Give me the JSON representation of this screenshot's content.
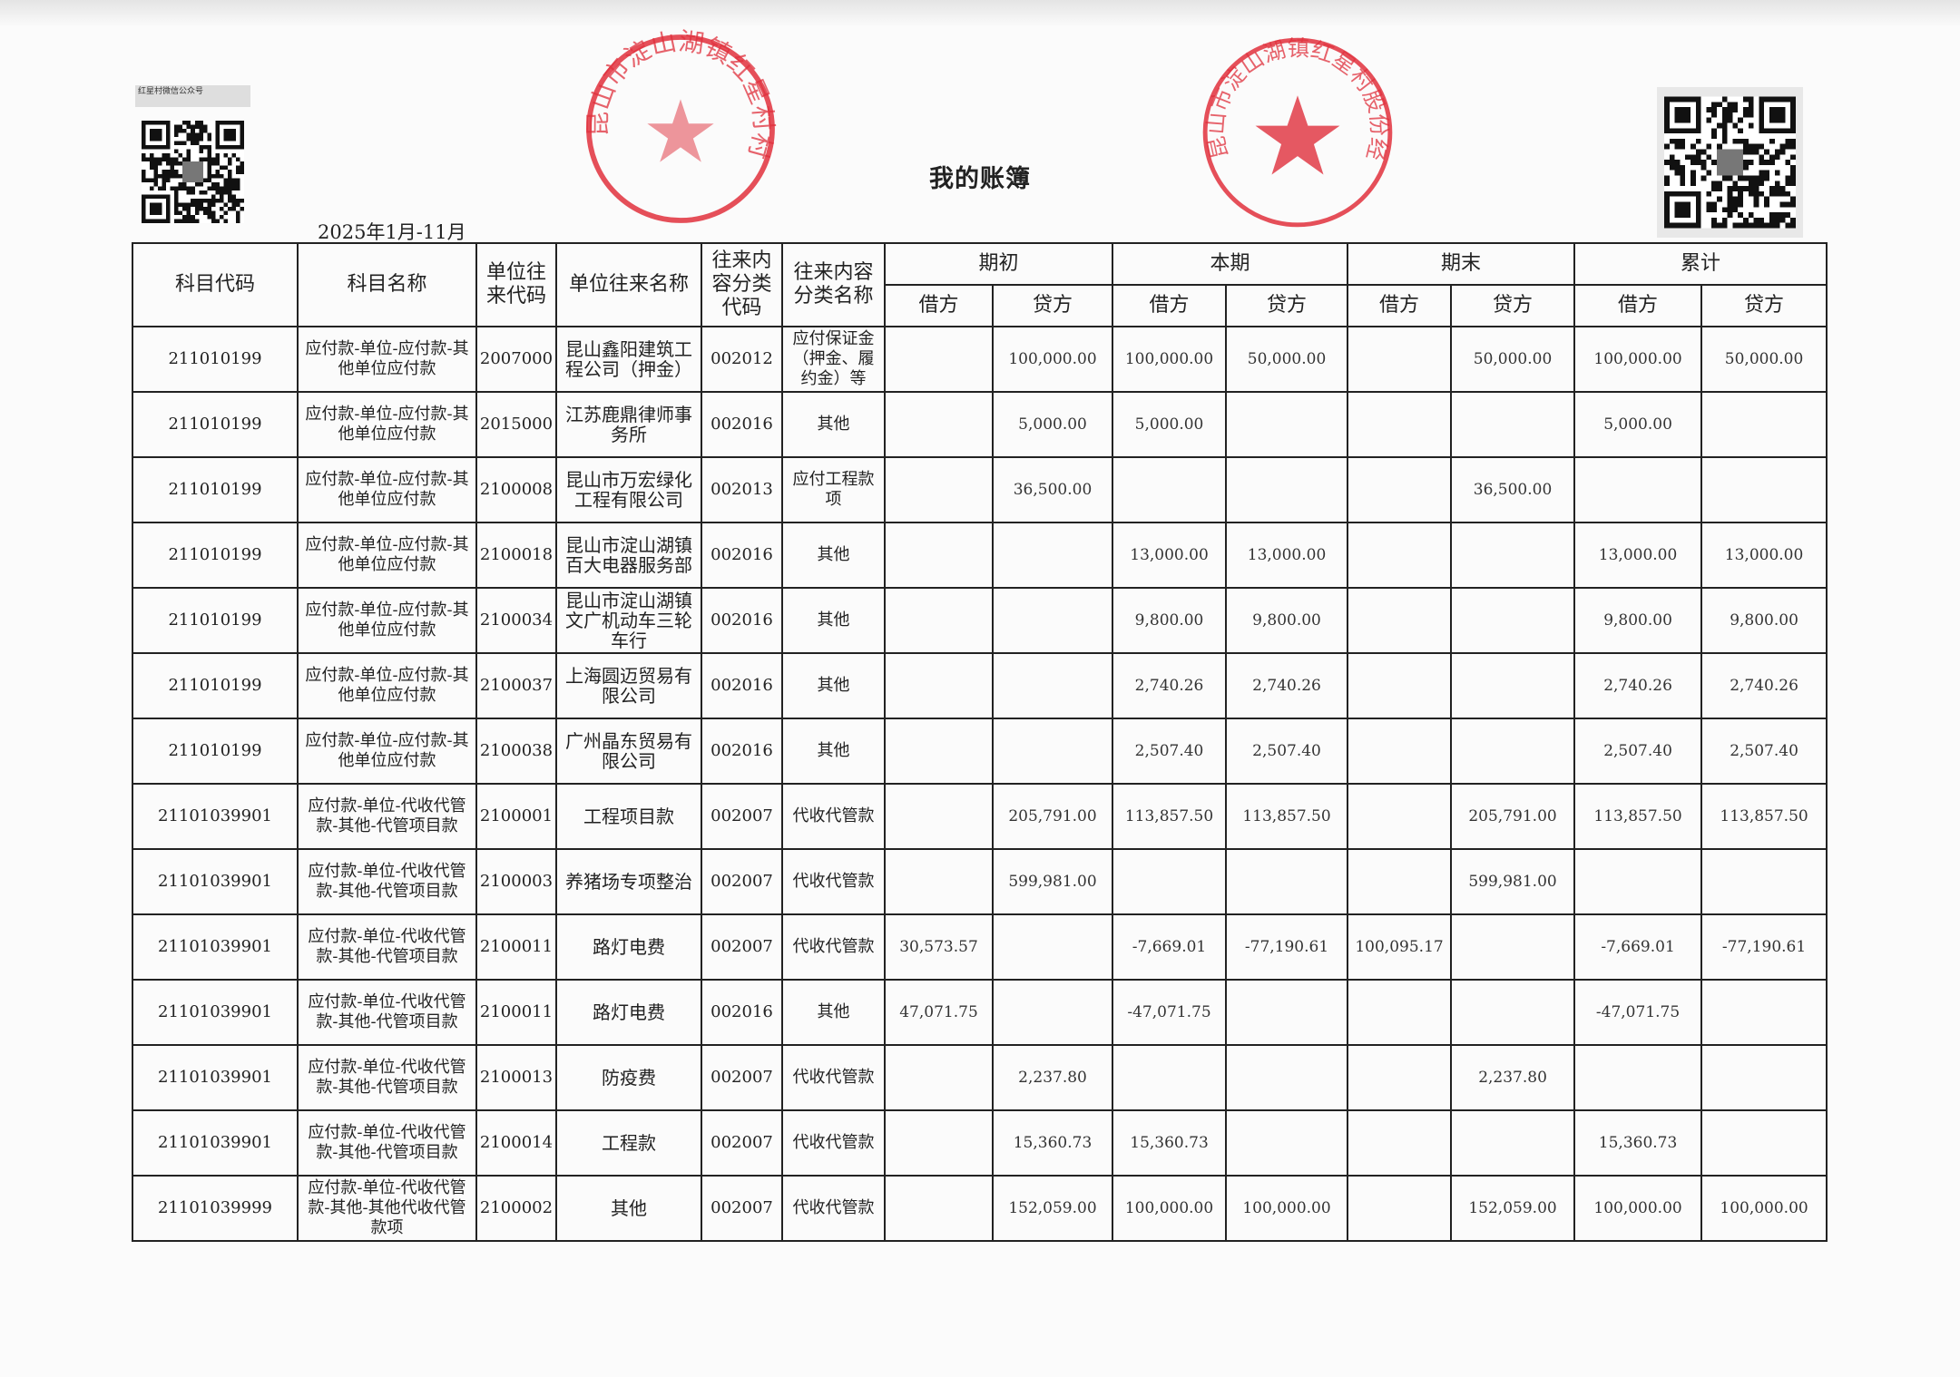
{
  "header": {
    "wechat_label": "红星村微信公众号",
    "title": "我的账簿",
    "period": "2025年1月-11月"
  },
  "table": {
    "columns": {
      "subject_code": "科目代码",
      "subject_name": "科目名称",
      "unit_code": "单位往来代码",
      "unit_name": "单位往来名称",
      "category_code": "往来内容分类代码",
      "category_name": "往来内容分类名称",
      "opening": "期初",
      "current": "本期",
      "closing": "期末",
      "cumulative": "累计",
      "debit": "借方",
      "credit": "贷方"
    },
    "rows": [
      {
        "subject_code": "211010199",
        "subject_name": "应付款-单位-应付款-其他单位应付款",
        "unit_code": "2007000",
        "unit_name": "昆山鑫阳建筑工程公司（押金）",
        "category_code": "002012",
        "category_name": "应付保证金（押金、履约金）等",
        "opening_debit": "",
        "opening_credit": "100,000.00",
        "current_debit": "100,000.00",
        "current_credit": "50,000.00",
        "closing_debit": "",
        "closing_credit": "50,000.00",
        "cum_debit": "100,000.00",
        "cum_credit": "50,000.00"
      },
      {
        "subject_code": "211010199",
        "subject_name": "应付款-单位-应付款-其他单位应付款",
        "unit_code": "2015000",
        "unit_name": "江苏鹿鼎律师事务所",
        "category_code": "002016",
        "category_name": "其他",
        "opening_debit": "",
        "opening_credit": "5,000.00",
        "current_debit": "5,000.00",
        "current_credit": "",
        "closing_debit": "",
        "closing_credit": "",
        "cum_debit": "5,000.00",
        "cum_credit": ""
      },
      {
        "subject_code": "211010199",
        "subject_name": "应付款-单位-应付款-其他单位应付款",
        "unit_code": "2100008",
        "unit_name": "昆山市万宏绿化工程有限公司",
        "category_code": "002013",
        "category_name": "应付工程款项",
        "opening_debit": "",
        "opening_credit": "36,500.00",
        "current_debit": "",
        "current_credit": "",
        "closing_debit": "",
        "closing_credit": "36,500.00",
        "cum_debit": "",
        "cum_credit": ""
      },
      {
        "subject_code": "211010199",
        "subject_name": "应付款-单位-应付款-其他单位应付款",
        "unit_code": "2100018",
        "unit_name": "昆山市淀山湖镇百大电器服务部",
        "category_code": "002016",
        "category_name": "其他",
        "opening_debit": "",
        "opening_credit": "",
        "current_debit": "13,000.00",
        "current_credit": "13,000.00",
        "closing_debit": "",
        "closing_credit": "",
        "cum_debit": "13,000.00",
        "cum_credit": "13,000.00"
      },
      {
        "subject_code": "211010199",
        "subject_name": "应付款-单位-应付款-其他单位应付款",
        "unit_code": "2100034",
        "unit_name": "昆山市淀山湖镇文广机动车三轮车行",
        "category_code": "002016",
        "category_name": "其他",
        "opening_debit": "",
        "opening_credit": "",
        "current_debit": "9,800.00",
        "current_credit": "9,800.00",
        "closing_debit": "",
        "closing_credit": "",
        "cum_debit": "9,800.00",
        "cum_credit": "9,800.00"
      },
      {
        "subject_code": "211010199",
        "subject_name": "应付款-单位-应付款-其他单位应付款",
        "unit_code": "2100037",
        "unit_name": "上海圆迈贸易有限公司",
        "category_code": "002016",
        "category_name": "其他",
        "opening_debit": "",
        "opening_credit": "",
        "current_debit": "2,740.26",
        "current_credit": "2,740.26",
        "closing_debit": "",
        "closing_credit": "",
        "cum_debit": "2,740.26",
        "cum_credit": "2,740.26"
      },
      {
        "subject_code": "211010199",
        "subject_name": "应付款-单位-应付款-其他单位应付款",
        "unit_code": "2100038",
        "unit_name": "广州晶东贸易有限公司",
        "category_code": "002016",
        "category_name": "其他",
        "opening_debit": "",
        "opening_credit": "",
        "current_debit": "2,507.40",
        "current_credit": "2,507.40",
        "closing_debit": "",
        "closing_credit": "",
        "cum_debit": "2,507.40",
        "cum_credit": "2,507.40"
      },
      {
        "subject_code": "21101039901",
        "subject_name": "应付款-单位-代收代管款-其他-代管项目款",
        "unit_code": "2100001",
        "unit_name": "工程项目款",
        "category_code": "002007",
        "category_name": "代收代管款",
        "opening_debit": "",
        "opening_credit": "205,791.00",
        "current_debit": "113,857.50",
        "current_credit": "113,857.50",
        "closing_debit": "",
        "closing_credit": "205,791.00",
        "cum_debit": "113,857.50",
        "cum_credit": "113,857.50"
      },
      {
        "subject_code": "21101039901",
        "subject_name": "应付款-单位-代收代管款-其他-代管项目款",
        "unit_code": "2100003",
        "unit_name": "养猪场专项整治",
        "category_code": "002007",
        "category_name": "代收代管款",
        "opening_debit": "",
        "opening_credit": "599,981.00",
        "current_debit": "",
        "current_credit": "",
        "closing_debit": "",
        "closing_credit": "599,981.00",
        "cum_debit": "",
        "cum_credit": ""
      },
      {
        "subject_code": "21101039901",
        "subject_name": "应付款-单位-代收代管款-其他-代管项目款",
        "unit_code": "2100011",
        "unit_name": "路灯电费",
        "category_code": "002007",
        "category_name": "代收代管款",
        "opening_debit": "30,573.57",
        "opening_credit": "",
        "current_debit": "-7,669.01",
        "current_credit": "-77,190.61",
        "closing_debit": "100,095.17",
        "closing_credit": "",
        "cum_debit": "-7,669.01",
        "cum_credit": "-77,190.61"
      },
      {
        "subject_code": "21101039901",
        "subject_name": "应付款-单位-代收代管款-其他-代管项目款",
        "unit_code": "2100011",
        "unit_name": "路灯电费",
        "category_code": "002016",
        "category_name": "其他",
        "opening_debit": "47,071.75",
        "opening_credit": "",
        "current_debit": "-47,071.75",
        "current_credit": "",
        "closing_debit": "",
        "closing_credit": "",
        "cum_debit": "-47,071.75",
        "cum_credit": ""
      },
      {
        "subject_code": "21101039901",
        "subject_name": "应付款-单位-代收代管款-其他-代管项目款",
        "unit_code": "2100013",
        "unit_name": "防疫费",
        "category_code": "002007",
        "category_name": "代收代管款",
        "opening_debit": "",
        "opening_credit": "2,237.80",
        "current_debit": "",
        "current_credit": "",
        "closing_debit": "",
        "closing_credit": "2,237.80",
        "cum_debit": "",
        "cum_credit": ""
      },
      {
        "subject_code": "21101039901",
        "subject_name": "应付款-单位-代收代管款-其他-代管项目款",
        "unit_code": "2100014",
        "unit_name": "工程款",
        "category_code": "002007",
        "category_name": "代收代管款",
        "opening_debit": "",
        "opening_credit": "15,360.73",
        "current_debit": "15,360.73",
        "current_credit": "",
        "closing_debit": "",
        "closing_credit": "",
        "cum_debit": "15,360.73",
        "cum_credit": ""
      },
      {
        "subject_code": "21101039999",
        "subject_name": "应付款-单位-代收代管款-其他-其他代收代管款项",
        "unit_code": "2100002",
        "unit_name": "其他",
        "category_code": "002007",
        "category_name": "代收代管款",
        "opening_debit": "",
        "opening_credit": "152,059.00",
        "current_debit": "100,000.00",
        "current_credit": "100,000.00",
        "closing_debit": "",
        "closing_credit": "152,059.00",
        "cum_debit": "100,000.00",
        "cum_credit": "100,000.00"
      }
    ]
  },
  "stamps": {
    "stamp_1_text": "昆山市淀山湖镇红星村村民委员会",
    "stamp_2_text": "昆山市淀山湖镇红星村股份经济合作社",
    "stamp_color": "#e0303c"
  }
}
